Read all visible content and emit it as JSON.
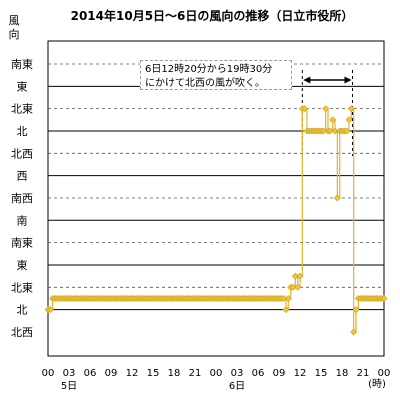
{
  "chart_data": {
    "type": "line",
    "title": "2014年10月5日～6日の風向の推移（日立市役所）",
    "ylabel": [
      "風",
      "向"
    ],
    "xlabel": "",
    "x_unit": "(時)",
    "y_categories": [
      "北西",
      "北",
      "北東",
      "東",
      "南東",
      "南",
      "南西",
      "西",
      "北西",
      "北",
      "北東",
      "東",
      "南東"
    ],
    "solid_grid_levels": [
      1,
      3,
      5,
      7,
      9,
      11
    ],
    "x_ticks": [
      "00",
      "03",
      "06",
      "09",
      "12",
      "15",
      "18",
      "21",
      "00",
      "03",
      "06",
      "09",
      "12",
      "15",
      "18",
      "21",
      "00"
    ],
    "x_tick_hours": [
      0,
      3,
      6,
      9,
      12,
      15,
      18,
      21,
      24,
      27,
      30,
      33,
      36,
      39,
      42,
      45,
      48
    ],
    "date_labels": [
      {
        "text": "5日",
        "hour": 3
      },
      {
        "text": "6日",
        "hour": 27
      }
    ],
    "xlim_hours": [
      0,
      48
    ],
    "annotation": {
      "lines": [
        "6日12時20分から19時30分",
        "にかけて北西の風が吹く。"
      ],
      "range_hours": [
        36.33,
        43.5
      ]
    },
    "series": [
      {
        "values": [
          [
            0.0,
            1.0
          ],
          [
            0.33,
            1.0
          ],
          [
            0.67,
            1.5
          ],
          [
            1.0,
            1.5
          ],
          [
            1.33,
            1.5
          ],
          [
            1.67,
            1.5
          ],
          [
            2.0,
            1.5
          ],
          [
            2.33,
            1.5
          ],
          [
            2.67,
            1.5
          ],
          [
            3.0,
            1.5
          ],
          [
            3.33,
            1.5
          ],
          [
            3.67,
            1.5
          ],
          [
            4.0,
            1.5
          ],
          [
            4.33,
            1.5
          ],
          [
            4.67,
            1.5
          ],
          [
            5.0,
            1.5
          ],
          [
            5.33,
            1.5
          ],
          [
            5.67,
            1.5
          ],
          [
            6.0,
            1.5
          ],
          [
            6.33,
            1.5
          ],
          [
            6.67,
            1.5
          ],
          [
            7.0,
            1.5
          ],
          [
            7.33,
            1.5
          ],
          [
            7.67,
            1.5
          ],
          [
            8.0,
            1.5
          ],
          [
            8.33,
            1.5
          ],
          [
            8.67,
            1.5
          ],
          [
            9.0,
            1.5
          ],
          [
            9.33,
            1.5
          ],
          [
            9.67,
            1.5
          ],
          [
            10.0,
            1.5
          ],
          [
            10.33,
            1.5
          ],
          [
            10.67,
            1.5
          ],
          [
            11.0,
            1.5
          ],
          [
            11.33,
            1.5
          ],
          [
            11.67,
            1.5
          ],
          [
            12.0,
            1.5
          ],
          [
            12.33,
            1.5
          ],
          [
            12.67,
            1.5
          ],
          [
            13.0,
            1.5
          ],
          [
            13.33,
            1.5
          ],
          [
            13.67,
            1.5
          ],
          [
            14.0,
            1.5
          ],
          [
            14.33,
            1.5
          ],
          [
            14.67,
            1.5
          ],
          [
            15.0,
            1.5
          ],
          [
            15.33,
            1.5
          ],
          [
            15.67,
            1.5
          ],
          [
            16.0,
            1.5
          ],
          [
            16.33,
            1.5
          ],
          [
            16.67,
            1.5
          ],
          [
            17.0,
            1.5
          ],
          [
            17.33,
            1.5
          ],
          [
            17.67,
            1.5
          ],
          [
            18.0,
            1.5
          ],
          [
            18.33,
            1.5
          ],
          [
            18.67,
            1.5
          ],
          [
            19.0,
            1.5
          ],
          [
            19.33,
            1.5
          ],
          [
            19.67,
            1.5
          ],
          [
            20.0,
            1.5
          ],
          [
            20.33,
            1.5
          ],
          [
            20.67,
            1.5
          ],
          [
            21.0,
            1.5
          ],
          [
            21.33,
            1.5
          ],
          [
            21.67,
            1.5
          ],
          [
            22.0,
            1.5
          ],
          [
            22.33,
            1.5
          ],
          [
            22.67,
            1.5
          ],
          [
            23.0,
            1.5
          ],
          [
            23.33,
            1.5
          ],
          [
            23.67,
            1.5
          ],
          [
            24.0,
            1.5
          ],
          [
            24.33,
            1.5
          ],
          [
            24.67,
            1.5
          ],
          [
            25.0,
            1.5
          ],
          [
            25.33,
            1.5
          ],
          [
            25.67,
            1.5
          ],
          [
            26.0,
            1.5
          ],
          [
            26.33,
            1.5
          ],
          [
            26.67,
            1.5
          ],
          [
            27.0,
            1.5
          ],
          [
            27.33,
            1.5
          ],
          [
            27.67,
            1.5
          ],
          [
            28.0,
            1.5
          ],
          [
            28.33,
            1.5
          ],
          [
            28.67,
            1.5
          ],
          [
            29.0,
            1.5
          ],
          [
            29.33,
            1.5
          ],
          [
            29.67,
            1.5
          ],
          [
            30.0,
            1.5
          ],
          [
            30.33,
            1.5
          ],
          [
            30.67,
            1.5
          ],
          [
            31.0,
            1.5
          ],
          [
            31.33,
            1.5
          ],
          [
            31.67,
            1.5
          ],
          [
            32.0,
            1.5
          ],
          [
            32.33,
            1.5
          ],
          [
            32.67,
            1.5
          ],
          [
            33.0,
            1.5
          ],
          [
            33.33,
            1.5
          ],
          [
            33.67,
            1.5
          ],
          [
            34.0,
            1.0
          ],
          [
            34.33,
            1.5
          ],
          [
            34.67,
            2.0
          ],
          [
            35.0,
            2.0
          ],
          [
            35.33,
            2.5
          ],
          [
            35.67,
            2.0
          ],
          [
            36.0,
            2.5
          ],
          [
            36.33,
            10.0
          ],
          [
            36.67,
            10.0
          ],
          [
            37.0,
            9.0
          ],
          [
            37.33,
            9.0
          ],
          [
            37.67,
            9.0
          ],
          [
            38.0,
            9.0
          ],
          [
            38.33,
            9.0
          ],
          [
            38.67,
            9.0
          ],
          [
            39.0,
            9.0
          ],
          [
            39.33,
            9.0
          ],
          [
            39.67,
            10.0
          ],
          [
            40.0,
            9.0
          ],
          [
            40.33,
            9.0
          ],
          [
            40.67,
            9.5
          ],
          [
            41.0,
            9.0
          ],
          [
            41.33,
            6.0
          ],
          [
            41.67,
            9.0
          ],
          [
            42.0,
            9.0
          ],
          [
            42.33,
            9.0
          ],
          [
            42.67,
            9.0
          ],
          [
            43.0,
            9.5
          ],
          [
            43.33,
            10.0
          ],
          [
            43.67,
            0.0
          ],
          [
            44.0,
            1.0
          ],
          [
            44.33,
            1.5
          ],
          [
            44.67,
            1.5
          ],
          [
            45.0,
            1.5
          ],
          [
            45.33,
            1.5
          ],
          [
            45.67,
            1.5
          ],
          [
            46.0,
            1.5
          ],
          [
            46.33,
            1.5
          ],
          [
            46.67,
            1.5
          ],
          [
            47.0,
            1.5
          ],
          [
            47.33,
            1.5
          ],
          [
            47.67,
            1.5
          ],
          [
            48.0,
            1.5
          ]
        ]
      }
    ],
    "line_color": "#e6b030",
    "marker_color": "#f0c830",
    "grid_line_color": "#000000",
    "dash_grid_color": "#555555"
  }
}
